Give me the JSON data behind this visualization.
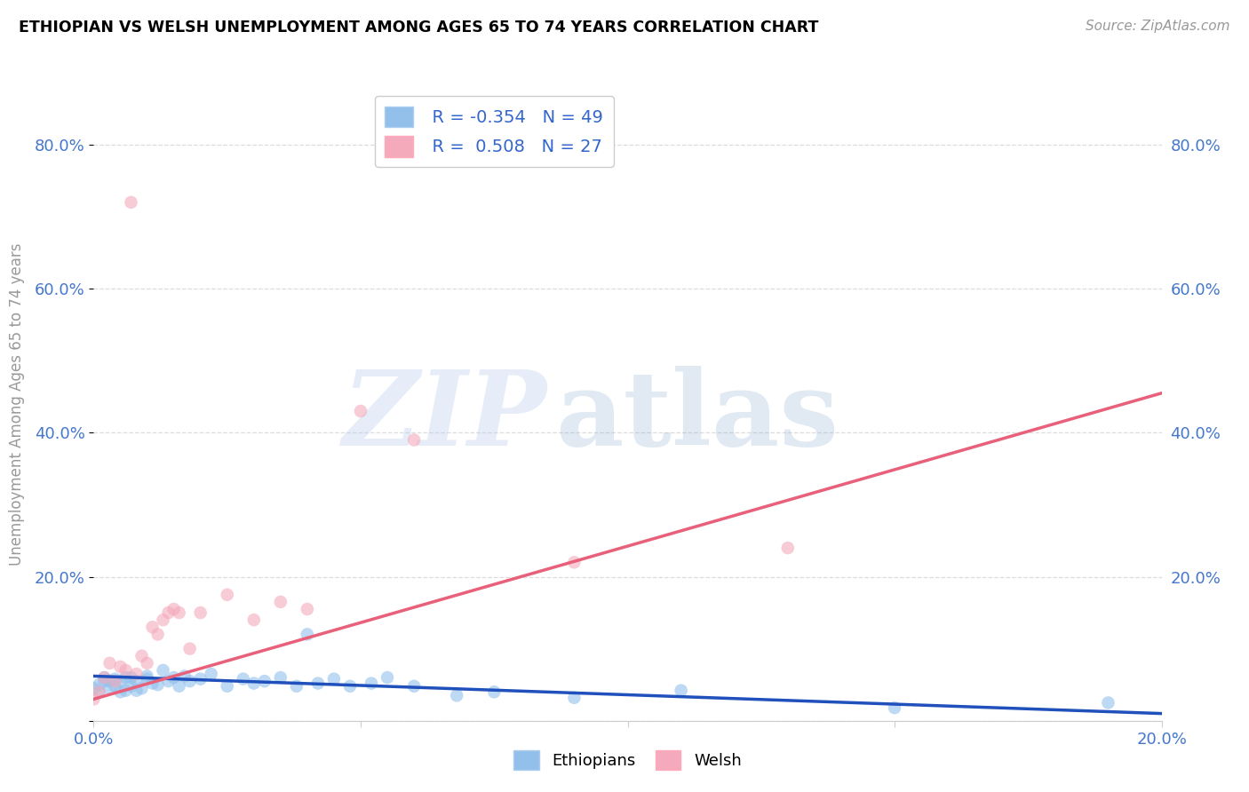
{
  "title": "ETHIOPIAN VS WELSH UNEMPLOYMENT AMONG AGES 65 TO 74 YEARS CORRELATION CHART",
  "source": "Source: ZipAtlas.com",
  "ylabel": "Unemployment Among Ages 65 to 74 years",
  "xlim": [
    0.0,
    0.2
  ],
  "ylim": [
    0.0,
    0.88
  ],
  "xticks": [
    0.0,
    0.05,
    0.1,
    0.15,
    0.2
  ],
  "yticks": [
    0.0,
    0.2,
    0.4,
    0.6,
    0.8
  ],
  "ytick_labels_left": [
    "",
    "20.0%",
    "40.0%",
    "60.0%",
    "80.0%"
  ],
  "ytick_labels_right": [
    "",
    "20.0%",
    "40.0%",
    "60.0%",
    "80.0%"
  ],
  "xtick_labels": [
    "0.0%",
    "",
    "",
    "",
    "20.0%"
  ],
  "legend_r1": "R = -0.354",
  "legend_n1": "N = 49",
  "legend_r2": "R =  0.508",
  "legend_n2": "N = 27",
  "blue_color": "#92C0EB",
  "pink_color": "#F4AABB",
  "blue_line_color": "#2050BB",
  "pink_line_color": "#E8607A",
  "ethiopian_x": [
    0.0,
    0.001,
    0.001,
    0.002,
    0.002,
    0.003,
    0.003,
    0.004,
    0.004,
    0.005,
    0.005,
    0.006,
    0.006,
    0.007,
    0.007,
    0.008,
    0.008,
    0.009,
    0.01,
    0.01,
    0.011,
    0.012,
    0.013,
    0.014,
    0.015,
    0.016,
    0.017,
    0.018,
    0.02,
    0.022,
    0.025,
    0.028,
    0.03,
    0.032,
    0.035,
    0.038,
    0.04,
    0.042,
    0.045,
    0.048,
    0.052,
    0.055,
    0.06,
    0.068,
    0.075,
    0.09,
    0.11,
    0.15,
    0.19
  ],
  "ethiopian_y": [
    0.045,
    0.04,
    0.05,
    0.055,
    0.06,
    0.045,
    0.055,
    0.048,
    0.058,
    0.04,
    0.055,
    0.042,
    0.06,
    0.048,
    0.06,
    0.042,
    0.055,
    0.045,
    0.058,
    0.062,
    0.052,
    0.05,
    0.07,
    0.055,
    0.06,
    0.048,
    0.062,
    0.055,
    0.058,
    0.065,
    0.048,
    0.058,
    0.052,
    0.055,
    0.06,
    0.048,
    0.12,
    0.052,
    0.058,
    0.048,
    0.052,
    0.06,
    0.048,
    0.035,
    0.04,
    0.032,
    0.042,
    0.018,
    0.025
  ],
  "welsh_x": [
    0.0,
    0.001,
    0.002,
    0.003,
    0.004,
    0.005,
    0.006,
    0.007,
    0.008,
    0.009,
    0.01,
    0.011,
    0.012,
    0.013,
    0.014,
    0.015,
    0.016,
    0.018,
    0.02,
    0.025,
    0.03,
    0.035,
    0.04,
    0.05,
    0.06,
    0.09,
    0.13
  ],
  "welsh_y": [
    0.03,
    0.04,
    0.06,
    0.08,
    0.055,
    0.075,
    0.07,
    0.72,
    0.065,
    0.09,
    0.08,
    0.13,
    0.12,
    0.14,
    0.15,
    0.155,
    0.15,
    0.1,
    0.15,
    0.175,
    0.14,
    0.165,
    0.155,
    0.43,
    0.39,
    0.22,
    0.24
  ],
  "welsh_line_x0": 0.0,
  "welsh_line_y0": 0.03,
  "welsh_line_x1": 0.2,
  "welsh_line_y1": 0.455,
  "eth_line_x0": 0.0,
  "eth_line_y0": 0.062,
  "eth_line_x1": 0.2,
  "eth_line_y1": 0.01
}
